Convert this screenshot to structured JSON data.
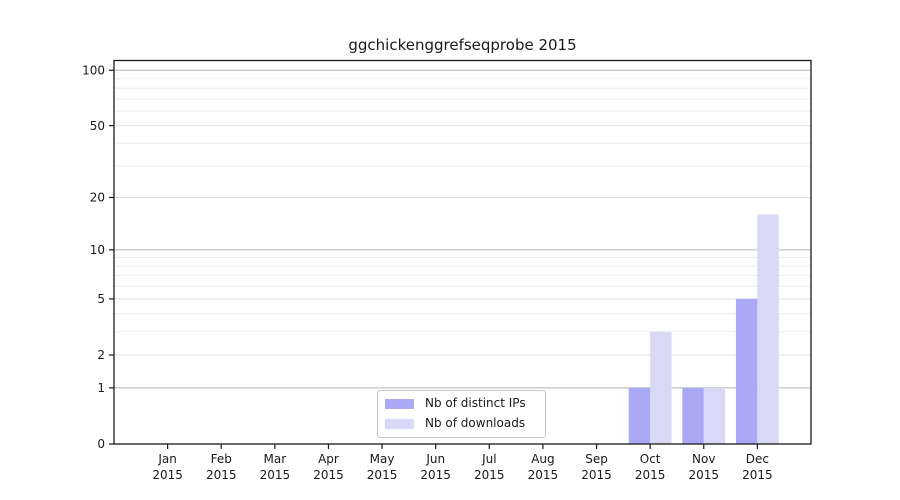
{
  "chart_data": {
    "type": "bar",
    "title": "ggchickenggrefseqprobe 2015",
    "categories": [
      "Jan 2015",
      "Feb 2015",
      "Mar 2015",
      "Apr 2015",
      "May 2015",
      "Jun 2015",
      "Jul 2015",
      "Aug 2015",
      "Sep 2015",
      "Oct 2015",
      "Nov 2015",
      "Dec 2015"
    ],
    "series": [
      {
        "name": "Nb of distinct IPs",
        "color": "#a9a9f5",
        "values": [
          0,
          0,
          0,
          0,
          0,
          0,
          0,
          0,
          0,
          1,
          1,
          5
        ]
      },
      {
        "name": "Nb of downloads",
        "color": "#d9d9f7",
        "values": [
          0,
          0,
          0,
          0,
          0,
          0,
          0,
          0,
          0,
          3,
          1,
          16
        ]
      }
    ],
    "xlabel": "",
    "ylabel": "",
    "yscale": "log1p",
    "ylim": [
      0,
      113
    ],
    "y_ticks": [
      0,
      1,
      2,
      5,
      10,
      20,
      50,
      100
    ],
    "y_minor_gridlines": [
      3,
      4,
      6,
      7,
      8,
      9,
      30,
      40,
      60,
      70,
      80,
      90
    ],
    "grid": true,
    "legend_position": "lower center"
  },
  "colors": {
    "background": "#ffffff",
    "spine": "#1a1a1a",
    "tick_text": "#1a1a1a",
    "major_grid": "#b3b3b3",
    "sub_grid": "#e3e3e3",
    "minor_grid": "#ececec",
    "legend_border": "#c9c9c9"
  }
}
